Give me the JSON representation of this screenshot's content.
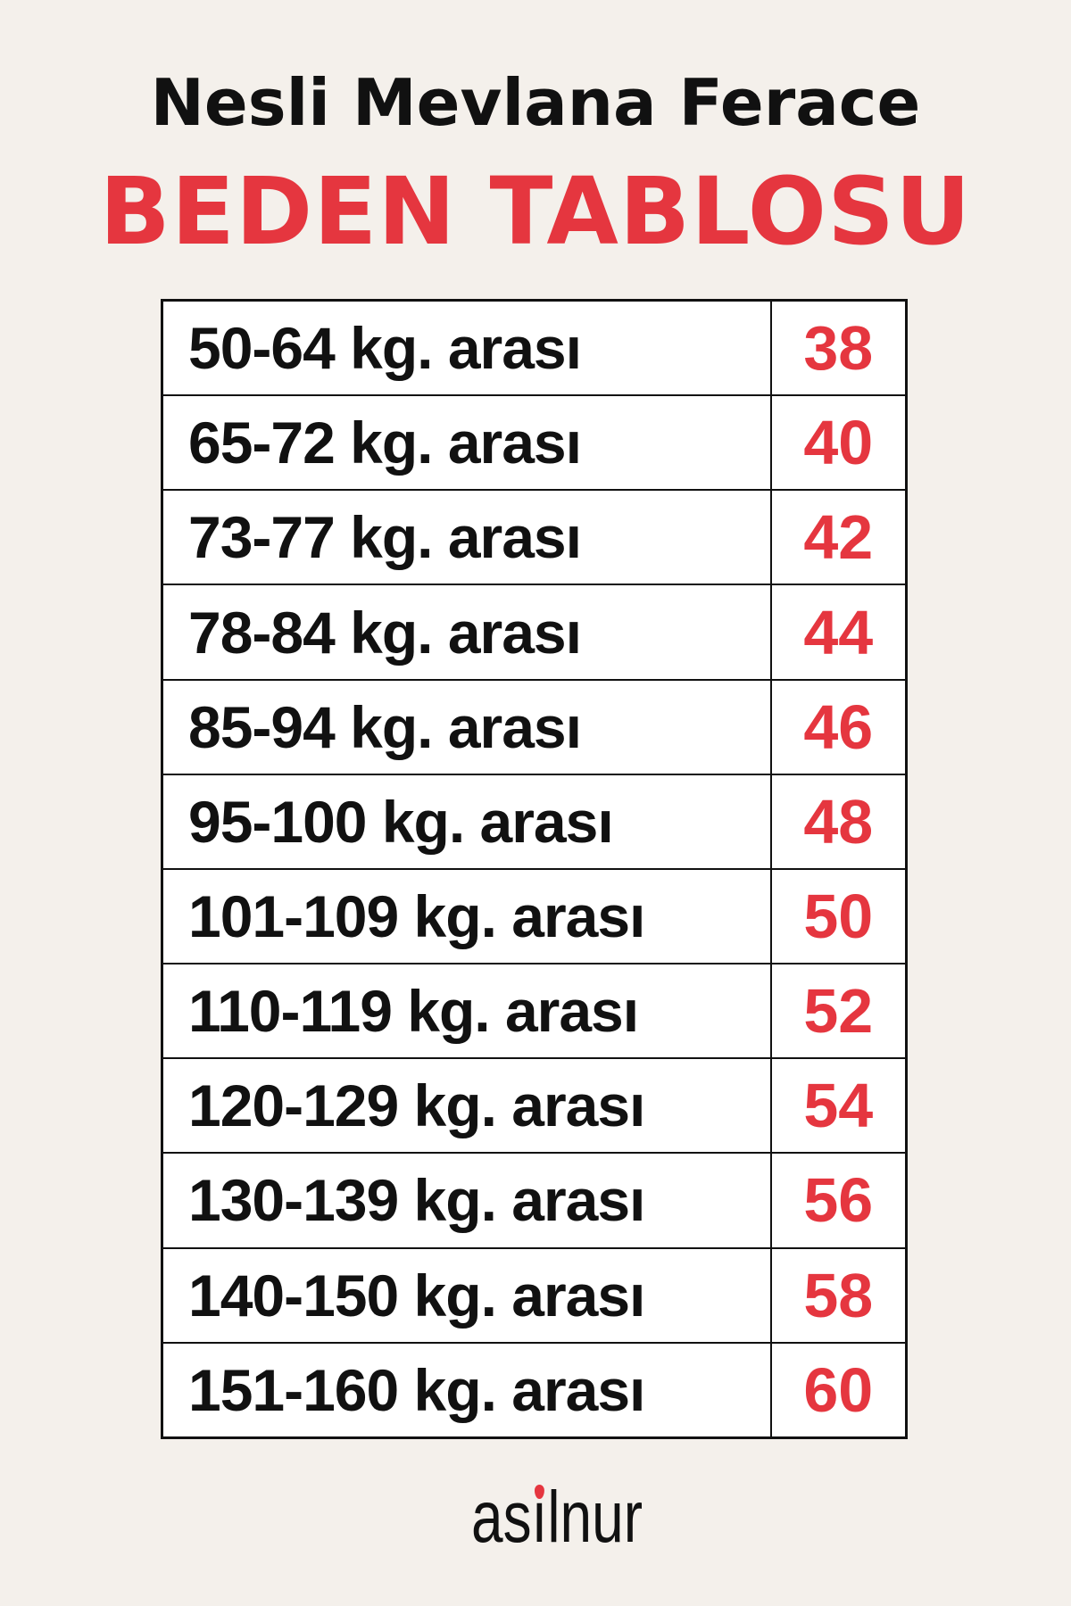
{
  "header": {
    "title": "Nesli Mevlana Ferace",
    "subtitle": "BEDEN TABLOSU"
  },
  "size_table": {
    "rows": [
      {
        "range": "50-64 kg. arası",
        "size": "38"
      },
      {
        "range": "65-72 kg. arası",
        "size": "40"
      },
      {
        "range": "73-77 kg. arası",
        "size": "42"
      },
      {
        "range": "78-84 kg. arası",
        "size": "44"
      },
      {
        "range": "85-94 kg. arası",
        "size": "46"
      },
      {
        "range": "95-100 kg. arası",
        "size": "48"
      },
      {
        "range": "101-109 kg. arası",
        "size": "50"
      },
      {
        "range": "110-119 kg. arası",
        "size": "52"
      },
      {
        "range": "120-129 kg. arası",
        "size": "54"
      },
      {
        "range": "130-139 kg. arası",
        "size": "56"
      },
      {
        "range": "140-150 kg. arası",
        "size": "58"
      },
      {
        "range": "151-160 kg. arası",
        "size": "60"
      }
    ]
  },
  "brand": {
    "logo_text": "asilnur",
    "logo_parts": [
      "as",
      "ı",
      "lnur"
    ]
  },
  "colors": {
    "accent": "#e5363f",
    "background": "#f4f0eb",
    "text": "#111111"
  }
}
